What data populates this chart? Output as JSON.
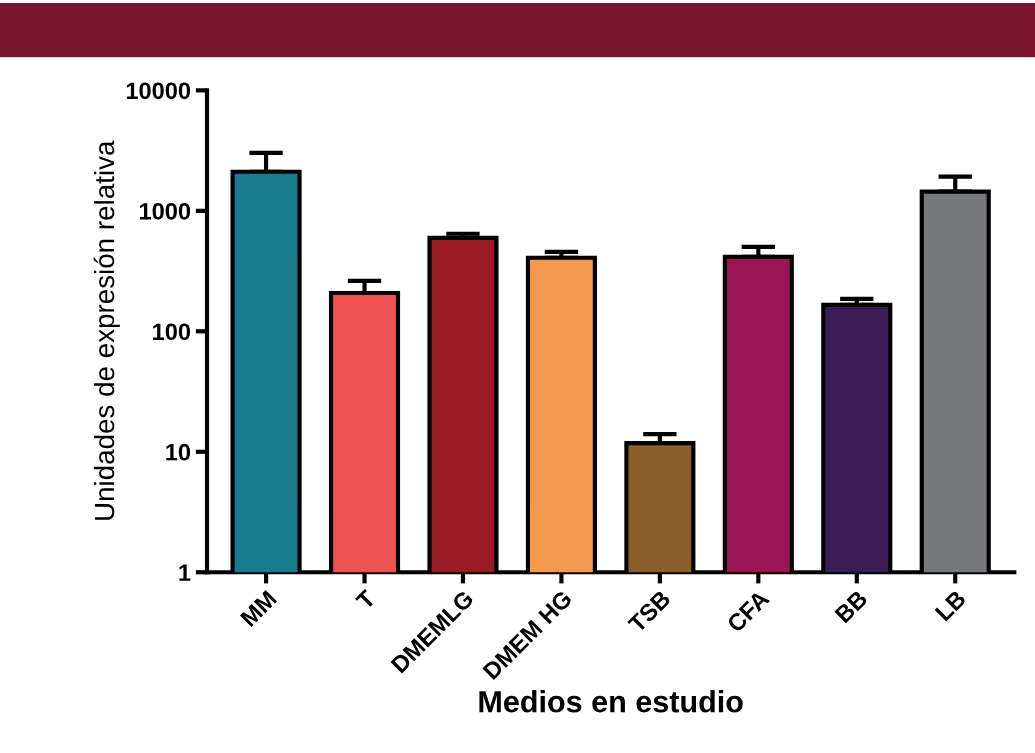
{
  "chart_data": {
    "type": "bar",
    "xlabel": "Medios en estudio",
    "ylabel": "Unidades de expresión relativa",
    "categories": [
      "MM",
      "T",
      "DMEMLG",
      "DMEM HG",
      "TSB",
      "CFA",
      "BB",
      "LB"
    ],
    "values": [
      2110,
      208,
      597,
      408,
      11.8,
      415,
      166,
      1442
    ],
    "colors": [
      "#1a7a8e",
      "#ef5253",
      "#9b1b22",
      "#f49a4e",
      "#8a5f2c",
      "#9a1652",
      "#3b1d55",
      "#76787b"
    ],
    "errors": [
      [
        2110,
        3030
      ],
      [
        208,
        262
      ],
      [
        597,
        645
      ],
      [
        408,
        457
      ],
      [
        11.8,
        14.0
      ],
      [
        415,
        503
      ],
      [
        166,
        186
      ],
      [
        1442,
        1920
      ]
    ],
    "log": true,
    "ylim": [
      1,
      10000
    ],
    "yticks": [
      1,
      10,
      100,
      1000,
      10000
    ],
    "grid": false,
    "legend": false
  }
}
